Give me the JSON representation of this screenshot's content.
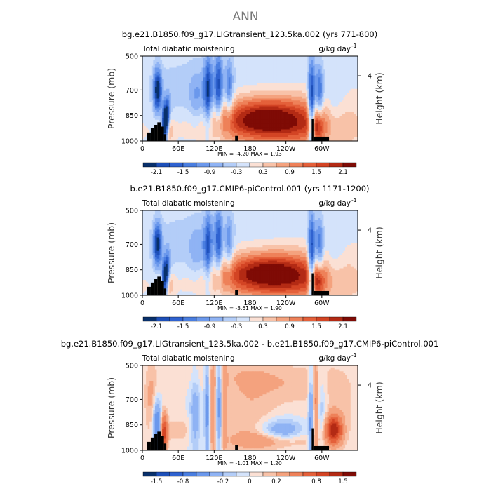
{
  "figure": {
    "title": "ANN",
    "colors": {
      "background": "#ffffff",
      "title_color": "#777777",
      "land": "#000000",
      "axis": "#000000"
    }
  },
  "chart_data": [
    {
      "type": "heatmap",
      "title": "bg.e21.B1850.f09_g17.LIGtransient_123.5ka.002 (yrs 771-800)",
      "left_string": "Total diabatic moistening",
      "right_string": "g/kg day",
      "right_string_exponent": "-1",
      "ylabel": "Pressure (mb)",
      "ylabel_right": "Height (km)",
      "x_ticks": [
        "0",
        "60E",
        "120E",
        "180",
        "120W",
        "60W"
      ],
      "x_tick_values": [
        0,
        60,
        120,
        180,
        240,
        300
      ],
      "xlim": [
        0,
        360
      ],
      "y_ticks": [
        "500",
        "700",
        "850",
        "1000"
      ],
      "y_tick_values": [
        500,
        700,
        850,
        1000
      ],
      "ylim": [
        1000,
        500
      ],
      "right_ticks": [
        "4"
      ],
      "right_tick_values": [
        616
      ],
      "min_max": "MIN = -4.20 MAX = 1.93",
      "min": -4.2,
      "max": 1.93,
      "colorbar_labels": [
        "-2.1",
        "-1.5",
        "-0.9",
        "-0.3",
        "0.3",
        "0.9",
        "1.5",
        "2.1"
      ],
      "colorbar_levels": [
        -2.4,
        -2.1,
        -1.8,
        -1.5,
        -1.2,
        -0.9,
        -0.6,
        -0.3,
        0,
        0.3,
        0.6,
        0.9,
        1.2,
        1.5,
        1.8,
        2.1,
        2.4
      ],
      "land": [
        {
          "lon": [
            8,
            14
          ],
          "p": 950
        },
        {
          "lon": [
            14,
            20
          ],
          "p": 925
        },
        {
          "lon": [
            20,
            25
          ],
          "p": 905
        },
        {
          "lon": [
            25,
            31
          ],
          "p": 890
        },
        {
          "lon": [
            31,
            36
          ],
          "p": 915
        },
        {
          "lon": [
            36,
            40
          ],
          "p": 960
        },
        {
          "lon": [
            283,
            286
          ],
          "p": 870
        },
        {
          "lon": [
            286,
            312
          ],
          "p": 975
        },
        {
          "lon": [
            155,
            160
          ],
          "p": 970
        }
      ],
      "features": [
        {
          "lon": 200,
          "p": 860,
          "wlon": 55,
          "wp": 85,
          "amp": 1.9,
          "tilt": 0
        },
        {
          "lon": 185,
          "p": 920,
          "wlon": 110,
          "wp": 70,
          "amp": 0.45,
          "tilt": 0
        },
        {
          "lon": 265,
          "p": 900,
          "wlon": 60,
          "wp": 120,
          "amp": 0.8,
          "tilt": 0
        },
        {
          "lon": 25,
          "p": 700,
          "wlon": 5,
          "wp": 90,
          "amp": -2.1,
          "tilt": 0
        },
        {
          "lon": 38,
          "p": 900,
          "wlon": 4,
          "wp": 90,
          "amp": -3.5,
          "tilt": -0.02
        },
        {
          "lon": 110,
          "p": 710,
          "wlon": 5,
          "wp": 150,
          "amp": -1.9,
          "tilt": 0
        },
        {
          "lon": 127,
          "p": 690,
          "wlon": 5,
          "wp": 150,
          "amp": -1.7,
          "tilt": 0
        },
        {
          "lon": 145,
          "p": 700,
          "wlon": 5,
          "wp": 130,
          "amp": -1.2,
          "tilt": 0
        },
        {
          "lon": 92,
          "p": 760,
          "wlon": 10,
          "wp": 120,
          "amp": -0.7,
          "tilt": 0
        },
        {
          "lon": 283,
          "p": 820,
          "wlon": 4,
          "wp": 200,
          "amp": -2.4,
          "tilt": 0
        },
        {
          "lon": 296,
          "p": 720,
          "wlon": 5,
          "wp": 120,
          "amp": -1.5,
          "tilt": 0
        },
        {
          "lon": 292,
          "p": 920,
          "wlon": 8,
          "wp": 60,
          "amp": 1.0,
          "tilt": 0
        },
        {
          "lon": 320,
          "p": 820,
          "wlon": 12,
          "wp": 120,
          "amp": -0.5,
          "tilt": 0
        },
        {
          "lon": 40,
          "p": 940,
          "wlon": 8,
          "wp": 50,
          "amp": 0.9,
          "tilt": 0
        },
        {
          "lon": 60,
          "p": 780,
          "wlon": 40,
          "wp": 200,
          "amp": -0.35,
          "tilt": 0
        },
        {
          "lon": 180,
          "p": 620,
          "wlon": 120,
          "wp": 140,
          "amp": -0.2,
          "tilt": 0
        }
      ]
    },
    {
      "type": "heatmap",
      "title": "b.e21.B1850.f09_g17.CMIP6-piControl.001 (yrs 1171-1200)",
      "left_string": "Total diabatic moistening",
      "right_string": "g/kg day",
      "right_string_exponent": "-1",
      "ylabel": "Pressure (mb)",
      "ylabel_right": "Height (km)",
      "x_ticks": [
        "0",
        "60E",
        "120E",
        "180",
        "120W",
        "60W"
      ],
      "x_tick_values": [
        0,
        60,
        120,
        180,
        240,
        300
      ],
      "xlim": [
        0,
        360
      ],
      "y_ticks": [
        "500",
        "700",
        "850",
        "1000"
      ],
      "y_tick_values": [
        500,
        700,
        850,
        1000
      ],
      "ylim": [
        1000,
        500
      ],
      "right_ticks": [
        "4"
      ],
      "right_tick_values": [
        616
      ],
      "min_max": "MIN = -3.61 MAX = 1.90",
      "min": -3.61,
      "max": 1.9,
      "colorbar_labels": [
        "-2.1",
        "-1.5",
        "-0.9",
        "-0.3",
        "0.3",
        "0.9",
        "1.5",
        "2.1"
      ],
      "colorbar_levels": [
        -2.4,
        -2.1,
        -1.8,
        -1.5,
        -1.2,
        -0.9,
        -0.6,
        -0.3,
        0,
        0.3,
        0.6,
        0.9,
        1.2,
        1.5,
        1.8,
        2.1,
        2.4
      ],
      "land": [
        {
          "lon": [
            8,
            14
          ],
          "p": 950
        },
        {
          "lon": [
            14,
            20
          ],
          "p": 925
        },
        {
          "lon": [
            20,
            25
          ],
          "p": 905
        },
        {
          "lon": [
            25,
            31
          ],
          "p": 890
        },
        {
          "lon": [
            31,
            36
          ],
          "p": 915
        },
        {
          "lon": [
            36,
            40
          ],
          "p": 960
        },
        {
          "lon": [
            283,
            286
          ],
          "p": 870
        },
        {
          "lon": [
            286,
            312
          ],
          "p": 975
        },
        {
          "lon": [
            155,
            160
          ],
          "p": 970
        }
      ],
      "features": [
        {
          "lon": 205,
          "p": 860,
          "wlon": 55,
          "wp": 80,
          "amp": 1.9,
          "tilt": 0
        },
        {
          "lon": 185,
          "p": 925,
          "wlon": 110,
          "wp": 65,
          "amp": 0.45,
          "tilt": 0
        },
        {
          "lon": 265,
          "p": 900,
          "wlon": 60,
          "wp": 120,
          "amp": 0.8,
          "tilt": 0
        },
        {
          "lon": 25,
          "p": 700,
          "wlon": 5,
          "wp": 90,
          "amp": -2.0,
          "tilt": 0
        },
        {
          "lon": 38,
          "p": 900,
          "wlon": 4,
          "wp": 90,
          "amp": -3.0,
          "tilt": -0.02
        },
        {
          "lon": 110,
          "p": 720,
          "wlon": 5,
          "wp": 150,
          "amp": -1.6,
          "tilt": 0
        },
        {
          "lon": 127,
          "p": 690,
          "wlon": 5,
          "wp": 150,
          "amp": -1.5,
          "tilt": 0
        },
        {
          "lon": 145,
          "p": 700,
          "wlon": 5,
          "wp": 130,
          "amp": -1.0,
          "tilt": 0
        },
        {
          "lon": 92,
          "p": 760,
          "wlon": 10,
          "wp": 120,
          "amp": -0.6,
          "tilt": 0
        },
        {
          "lon": 283,
          "p": 820,
          "wlon": 4,
          "wp": 200,
          "amp": -2.3,
          "tilt": 0
        },
        {
          "lon": 296,
          "p": 720,
          "wlon": 5,
          "wp": 120,
          "amp": -1.4,
          "tilt": 0
        },
        {
          "lon": 292,
          "p": 920,
          "wlon": 8,
          "wp": 60,
          "amp": 1.0,
          "tilt": 0
        },
        {
          "lon": 320,
          "p": 820,
          "wlon": 12,
          "wp": 120,
          "amp": -0.45,
          "tilt": 0
        },
        {
          "lon": 40,
          "p": 940,
          "wlon": 8,
          "wp": 50,
          "amp": 0.9,
          "tilt": 0
        },
        {
          "lon": 60,
          "p": 780,
          "wlon": 40,
          "wp": 200,
          "amp": -0.35,
          "tilt": 0
        },
        {
          "lon": 180,
          "p": 620,
          "wlon": 120,
          "wp": 140,
          "amp": -0.2,
          "tilt": 0
        }
      ]
    },
    {
      "type": "heatmap",
      "title": "bg.e21.B1850.f09_g17.LIGtransient_123.5ka.002 - b.e21.B1850.f09_g17.CMIP6-piControl.001",
      "left_string": "Total diabatic moistening",
      "right_string": "g/kg day",
      "right_string_exponent": "-1",
      "ylabel": "Pressure (mb)",
      "ylabel_right": "Height (km)",
      "x_ticks": [
        "0",
        "60E",
        "120E",
        "180",
        "120W",
        "60W"
      ],
      "x_tick_values": [
        0,
        60,
        120,
        180,
        240,
        300
      ],
      "xlim": [
        0,
        360
      ],
      "y_ticks": [
        "500",
        "700",
        "850",
        "1000"
      ],
      "y_tick_values": [
        500,
        700,
        850,
        1000
      ],
      "ylim": [
        1000,
        500
      ],
      "right_ticks": [
        "4"
      ],
      "right_tick_values": [
        616
      ],
      "min_max": "MIN = -1.01 MAX = 1.20",
      "min": -1.01,
      "max": 1.2,
      "colorbar_labels": [
        "-1.5",
        "-0.8",
        "-0.2",
        "0",
        "0.2",
        "0.8",
        "1.5"
      ],
      "colorbar_levels": [
        -2,
        -1.5,
        -1,
        -0.8,
        -0.6,
        -0.4,
        -0.2,
        -0.1,
        0,
        0.1,
        0.2,
        0.4,
        0.6,
        0.8,
        1,
        1.5,
        2
      ],
      "land": [
        {
          "lon": [
            8,
            14
          ],
          "p": 950
        },
        {
          "lon": [
            14,
            20
          ],
          "p": 925
        },
        {
          "lon": [
            20,
            25
          ],
          "p": 905
        },
        {
          "lon": [
            25,
            31
          ],
          "p": 890
        },
        {
          "lon": [
            31,
            36
          ],
          "p": 915
        },
        {
          "lon": [
            36,
            40
          ],
          "p": 960
        },
        {
          "lon": [
            283,
            286
          ],
          "p": 870
        },
        {
          "lon": [
            286,
            312
          ],
          "p": 975
        },
        {
          "lon": [
            155,
            160
          ],
          "p": 970
        }
      ],
      "features": [
        {
          "lon": 320,
          "p": 880,
          "wlon": 10,
          "wp": 60,
          "amp": 1.1,
          "tilt": 0
        },
        {
          "lon": 325,
          "p": 700,
          "wlon": 35,
          "wp": 200,
          "amp": 0.12,
          "tilt": 0
        },
        {
          "lon": 232,
          "p": 890,
          "wlon": 25,
          "wp": 50,
          "amp": -0.45,
          "tilt": 0
        },
        {
          "lon": 215,
          "p": 940,
          "wlon": 45,
          "wp": 35,
          "amp": 0.35,
          "tilt": 0
        },
        {
          "lon": 178,
          "p": 770,
          "wlon": 35,
          "wp": 220,
          "amp": 0.18,
          "tilt": 0
        },
        {
          "lon": 160,
          "p": 560,
          "wlon": 80,
          "wp": 70,
          "amp": 0.1,
          "tilt": 0
        },
        {
          "lon": 36,
          "p": 900,
          "wlon": 4,
          "wp": 80,
          "amp": 0.9,
          "tilt": 0
        },
        {
          "lon": 24,
          "p": 850,
          "wlon": 5,
          "wp": 100,
          "amp": -0.7,
          "tilt": 0
        },
        {
          "lon": 15,
          "p": 700,
          "wlon": 8,
          "wp": 150,
          "amp": 0.25,
          "tilt": 0
        },
        {
          "lon": 88,
          "p": 800,
          "wlon": 6,
          "wp": 160,
          "amp": -0.35,
          "tilt": 0
        },
        {
          "lon": 108,
          "p": 760,
          "wlon": 3,
          "wp": 200,
          "amp": -0.55,
          "tilt": 0
        },
        {
          "lon": 118,
          "p": 760,
          "wlon": 3,
          "wp": 200,
          "amp": 0.35,
          "tilt": 0
        },
        {
          "lon": 128,
          "p": 740,
          "wlon": 3,
          "wp": 200,
          "amp": -0.5,
          "tilt": 0
        },
        {
          "lon": 137,
          "p": 740,
          "wlon": 3,
          "wp": 200,
          "amp": 0.3,
          "tilt": 0
        },
        {
          "lon": 282,
          "p": 800,
          "wlon": 3,
          "wp": 200,
          "amp": -0.5,
          "tilt": 0
        },
        {
          "lon": 290,
          "p": 800,
          "wlon": 3,
          "wp": 200,
          "amp": 0.4,
          "tilt": 0
        },
        {
          "lon": 300,
          "p": 760,
          "wlon": 6,
          "wp": 150,
          "amp": -0.25,
          "tilt": 0
        },
        {
          "lon": 60,
          "p": 880,
          "wlon": 20,
          "wp": 60,
          "amp": 0.15,
          "tilt": 0
        },
        {
          "lon": 250,
          "p": 620,
          "wlon": 40,
          "wp": 80,
          "amp": 0.12,
          "tilt": 0
        }
      ]
    }
  ]
}
